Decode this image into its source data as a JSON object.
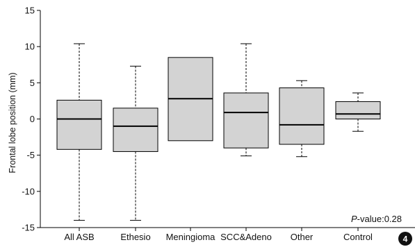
{
  "chart_data": {
    "type": "box",
    "title": "",
    "xlabel": "",
    "ylabel": "Frontal lobe position (mm)",
    "ylim": [
      -15,
      15
    ],
    "yticks": [
      -15,
      -10,
      -5,
      0,
      5,
      10,
      15
    ],
    "categories": [
      "All ASB",
      "Ethesio",
      "Meningioma",
      "SCC&Adeno",
      "Other",
      "Control"
    ],
    "boxes": [
      {
        "whisker_low": -14.0,
        "q1": -4.2,
        "median": 0.0,
        "q3": 2.6,
        "whisker_high": 10.4
      },
      {
        "whisker_low": -14.0,
        "q1": -4.5,
        "median": -1.0,
        "q3": 1.5,
        "whisker_high": 7.3
      },
      {
        "whisker_low": null,
        "q1": -3.0,
        "median": 2.8,
        "q3": 8.5,
        "whisker_high": null
      },
      {
        "whisker_low": -5.1,
        "q1": -4.0,
        "median": 0.9,
        "q3": 3.6,
        "whisker_high": 10.4
      },
      {
        "whisker_low": -5.2,
        "q1": -3.5,
        "median": -0.8,
        "q3": 4.3,
        "whisker_high": 5.3
      },
      {
        "whisker_low": -1.7,
        "q1": 0.0,
        "median": 0.7,
        "q3": 2.4,
        "whisker_high": 3.6
      }
    ],
    "annotation": {
      "p_label_italic": "P",
      "p_label_rest": "-value:0.28"
    },
    "grid": false,
    "box_fill": "#d3d3d3",
    "line_color": "#000000"
  },
  "figure_badge": "4"
}
